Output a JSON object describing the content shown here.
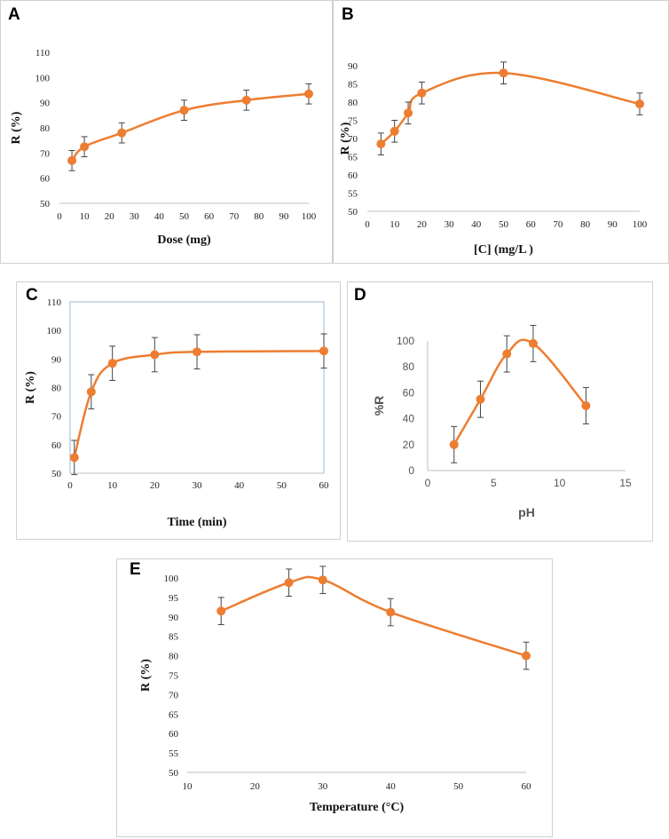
{
  "chart_data": [
    {
      "id": "A",
      "type": "line",
      "panel_label": "A",
      "xlabel": "Dose (mg)",
      "ylabel": "R (%)",
      "xlim": [
        0,
        100
      ],
      "ylim": [
        50,
        110
      ],
      "xticks": [
        "0",
        "10",
        "20",
        "30",
        "40",
        "50",
        "60",
        "70",
        "80",
        "90",
        "100"
      ],
      "yticks": [
        "50",
        "60",
        "70",
        "80",
        "90",
        "100",
        "110"
      ],
      "x": [
        5,
        10,
        25,
        50,
        75,
        100
      ],
      "y": [
        67,
        72.5,
        78,
        87,
        91,
        93.5
      ],
      "err": [
        4,
        4,
        4,
        4,
        4,
        4
      ],
      "color": "#ed7d31"
    },
    {
      "id": "B",
      "type": "line",
      "panel_label": "B",
      "xlabel": "[C] (mg/L )",
      "ylabel": "R (%)",
      "xlim": [
        0,
        100
      ],
      "ylim": [
        50,
        90
      ],
      "xticks": [
        "0",
        "10",
        "20",
        "30",
        "40",
        "50",
        "60",
        "70",
        "80",
        "90",
        "100"
      ],
      "yticks": [
        "50",
        "55",
        "60",
        "65",
        "70",
        "75",
        "80",
        "85",
        "90"
      ],
      "x": [
        5,
        10,
        15,
        20,
        50,
        100
      ],
      "y": [
        68.5,
        72,
        77,
        82.5,
        88,
        79.5
      ],
      "err": [
        3,
        3,
        3,
        3,
        3,
        3
      ],
      "color": "#ed7d31"
    },
    {
      "id": "C",
      "type": "line",
      "panel_label": "C",
      "xlabel": "Time (min)",
      "ylabel": "R (%)",
      "xlim": [
        0,
        60
      ],
      "ylim": [
        50,
        110
      ],
      "xticks": [
        "0",
        "10",
        "20",
        "30",
        "40",
        "50",
        "60"
      ],
      "yticks": [
        "50",
        "60",
        "70",
        "80",
        "90",
        "100",
        "110"
      ],
      "x": [
        1,
        5,
        10,
        20,
        30,
        60
      ],
      "y": [
        55.5,
        78.5,
        88.5,
        91.5,
        92.5,
        92.8
      ],
      "err": [
        6,
        6,
        6,
        6,
        6,
        6
      ],
      "color": "#ed7d31"
    },
    {
      "id": "D",
      "type": "line",
      "panel_label": "D",
      "xlabel": "pH",
      "ylabel": "%R",
      "xlim": [
        0,
        15
      ],
      "ylim": [
        0,
        100
      ],
      "xticks": [
        "0",
        "5",
        "10",
        "15"
      ],
      "yticks": [
        "0",
        "20",
        "40",
        "60",
        "80",
        "100"
      ],
      "x": [
        2,
        4,
        6,
        8,
        12
      ],
      "y": [
        20,
        55,
        90,
        98,
        50
      ],
      "err": [
        14,
        14,
        14,
        14,
        14
      ],
      "color": "#ed7d31"
    },
    {
      "id": "E",
      "type": "line",
      "panel_label": "E",
      "xlabel": "Temperature (°C)",
      "ylabel": "R (%)",
      "xlim": [
        10,
        60
      ],
      "ylim": [
        50,
        100
      ],
      "xticks": [
        "10",
        "20",
        "30",
        "40",
        "50",
        "60"
      ],
      "yticks": [
        "50",
        "55",
        "60",
        "65",
        "70",
        "75",
        "80",
        "85",
        "90",
        "95",
        "100"
      ],
      "x": [
        15,
        25,
        30,
        40,
        60
      ],
      "y": [
        91.5,
        98.8,
        99.5,
        91.2,
        80
      ],
      "err": [
        3.5,
        3.5,
        3.5,
        3.5,
        3.5
      ],
      "color": "#ed7d31"
    }
  ]
}
